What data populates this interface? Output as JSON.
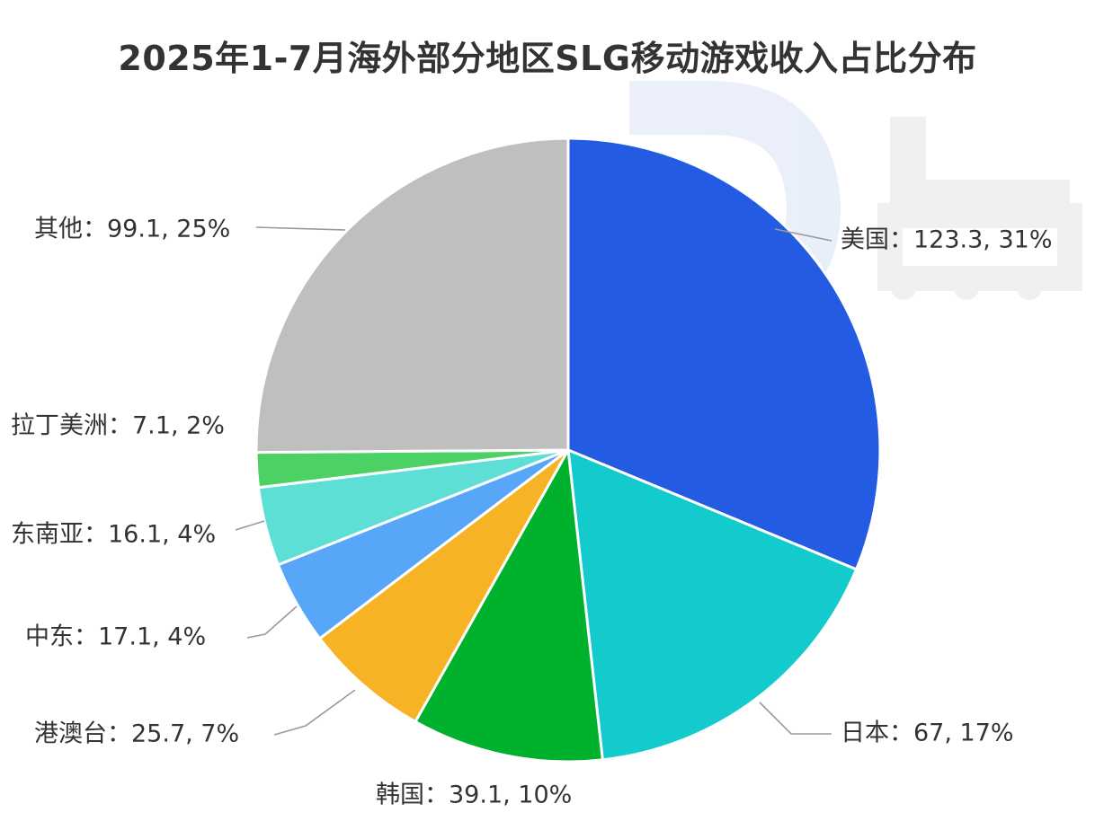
{
  "chart_data": {
    "type": "pie",
    "title": "2025年1-7月海外部分地区SLG移动游戏收入占比分布",
    "start_angle_deg": 0,
    "direction": "clockwise",
    "label_separator": "：",
    "slices": [
      {
        "name": "美国",
        "value": 123.3,
        "percent_label": "31%",
        "color": "#235BE3"
      },
      {
        "name": "日本",
        "value": 67,
        "percent_label": "17%",
        "color": "#13CACC"
      },
      {
        "name": "韩国",
        "value": 39.1,
        "percent_label": "10%",
        "color": "#00B12E"
      },
      {
        "name": "港澳台",
        "value": 25.7,
        "percent_label": "7%",
        "color": "#F5B325"
      },
      {
        "name": "中东",
        "value": 17.1,
        "percent_label": "4%",
        "color": "#57A6F8"
      },
      {
        "name": "东南亚",
        "value": 16.1,
        "percent_label": "4%",
        "color": "#5EDFD5"
      },
      {
        "name": "拉丁美洲",
        "value": 7.1,
        "percent_label": "2%",
        "color": "#4CD264"
      },
      {
        "name": "其他",
        "value": 99.1,
        "percent_label": "25%",
        "color": "#BFBFBF"
      }
    ]
  }
}
